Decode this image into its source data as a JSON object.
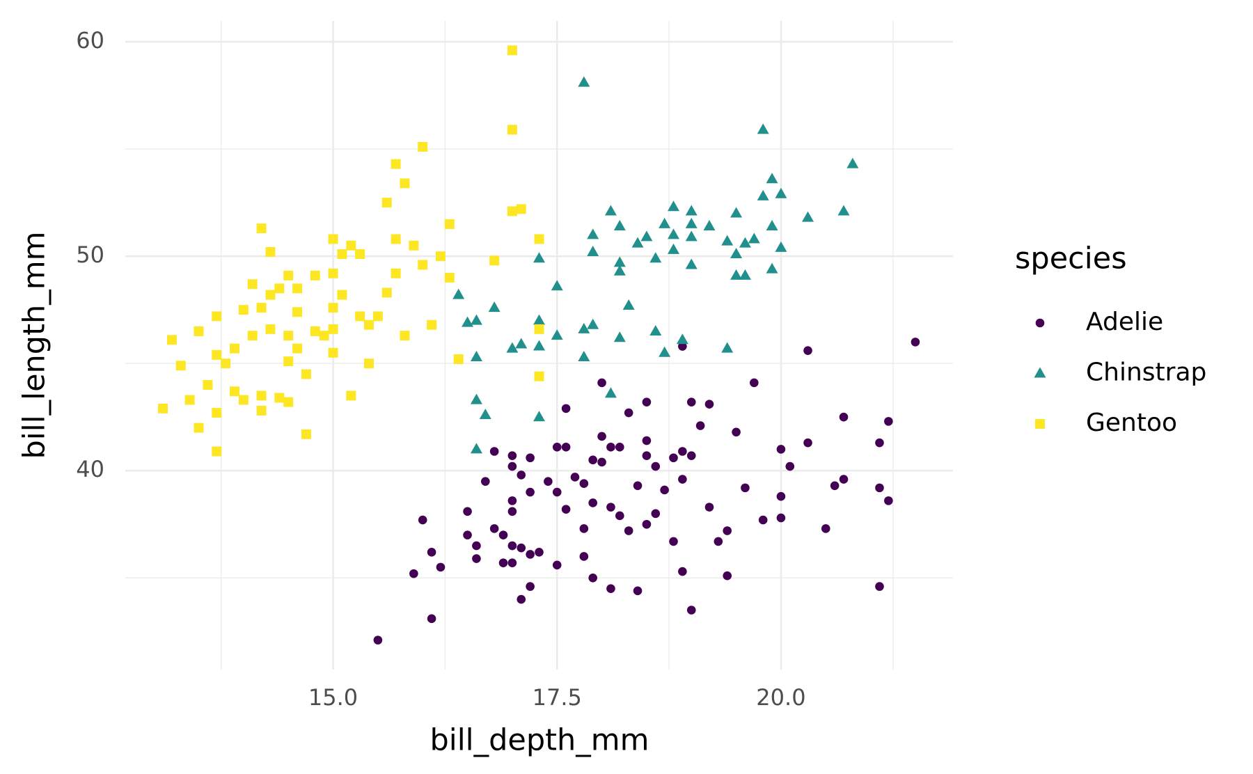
{
  "chart_data": {
    "type": "scatter",
    "xlabel": "bill_depth_mm",
    "ylabel": "bill_length_mm",
    "legend_title": "species",
    "legend": "right",
    "xlim": [
      12.68,
      21.92
    ],
    "ylim": [
      30.725,
      60.975
    ],
    "xticks": [
      {
        "value": 15,
        "label": "15.0"
      },
      {
        "value": 17.5,
        "label": "17.5"
      },
      {
        "value": 20,
        "label": "20.0"
      }
    ],
    "yticks": [
      40,
      50,
      60
    ],
    "x_minor_ticks": [
      13.75,
      16.25,
      18.75,
      21.25
    ],
    "y_minor_ticks": [
      35,
      45,
      55
    ],
    "grid": true,
    "series": [
      {
        "name": "Adelie",
        "color": "#440154",
        "marker": "circle",
        "x": [
          15.5,
          15.9,
          16.0,
          16.1,
          16.1,
          16.2,
          16.5,
          16.5,
          16.6,
          16.6,
          16.7,
          16.8,
          16.8,
          16.9,
          16.9,
          17.0,
          17.0,
          17.0,
          17.0,
          17.0,
          17.0,
          17.1,
          17.1,
          17.1,
          17.2,
          17.2,
          17.2,
          17.2,
          17.3,
          17.4,
          17.5,
          17.5,
          17.5,
          17.6,
          17.6,
          17.6,
          17.7,
          17.8,
          17.8,
          17.8,
          17.9,
          17.9,
          17.9,
          18.0,
          18.0,
          18.0,
          18.1,
          18.1,
          18.1,
          18.2,
          18.2,
          18.3,
          18.3,
          18.4,
          18.4,
          18.5,
          18.5,
          18.5,
          18.5,
          18.6,
          18.6,
          18.7,
          18.8,
          18.8,
          18.9,
          18.9,
          18.9,
          18.9,
          19.0,
          19.0,
          19.0,
          19.1,
          19.2,
          19.2,
          19.3,
          19.4,
          19.4,
          19.5,
          19.6,
          19.7,
          19.8,
          20.0,
          20.0,
          20.0,
          20.1,
          20.3,
          20.3,
          20.5,
          20.6,
          20.7,
          20.7,
          21.1,
          21.1,
          21.1,
          21.2,
          21.2,
          21.5
        ],
        "y": [
          32.1,
          35.2,
          37.7,
          33.1,
          36.2,
          35.5,
          38.1,
          37.0,
          35.9,
          36.5,
          39.5,
          40.9,
          37.3,
          37.0,
          35.7,
          40.7,
          40.2,
          38.6,
          38.1,
          36.5,
          35.7,
          39.8,
          36.4,
          34.0,
          40.6,
          39.0,
          36.1,
          34.6,
          36.2,
          39.5,
          41.1,
          39.0,
          35.6,
          42.9,
          41.1,
          38.2,
          39.7,
          39.4,
          37.3,
          36.0,
          40.5,
          38.5,
          35.0,
          44.1,
          41.6,
          40.4,
          41.1,
          38.3,
          34.5,
          41.1,
          37.9,
          42.7,
          37.2,
          39.3,
          34.4,
          43.2,
          41.4,
          40.7,
          37.5,
          40.2,
          38.0,
          39.1,
          40.6,
          36.7,
          45.8,
          40.9,
          39.6,
          35.3,
          43.2,
          40.7,
          33.5,
          42.1,
          43.1,
          38.3,
          36.7,
          37.2,
          35.1,
          41.8,
          39.2,
          44.1,
          37.7,
          41.0,
          38.8,
          37.8,
          40.2,
          45.6,
          41.3,
          37.3,
          39.3,
          42.5,
          39.6,
          41.3,
          39.2,
          34.6,
          42.3,
          38.6,
          46.0
        ]
      },
      {
        "name": "Chinstrap",
        "color": "#21908C",
        "marker": "triangle",
        "x": [
          16.4,
          16.5,
          16.6,
          16.6,
          16.6,
          16.6,
          16.7,
          16.8,
          17.0,
          17.1,
          17.3,
          17.3,
          17.3,
          17.3,
          17.5,
          17.5,
          17.8,
          17.8,
          17.8,
          17.9,
          17.9,
          17.9,
          18.1,
          18.1,
          18.2,
          18.2,
          18.2,
          18.2,
          18.3,
          18.4,
          18.5,
          18.6,
          18.6,
          18.7,
          18.7,
          18.8,
          18.8,
          18.8,
          18.9,
          19.0,
          19.0,
          19.0,
          19.0,
          19.2,
          19.4,
          19.4,
          19.5,
          19.5,
          19.5,
          19.6,
          19.6,
          19.7,
          19.8,
          19.8,
          19.9,
          19.9,
          19.9,
          20.0,
          20.0,
          20.3,
          20.7,
          20.8
        ],
        "y": [
          48.2,
          46.9,
          47.0,
          45.3,
          43.3,
          41.0,
          42.6,
          47.6,
          45.7,
          45.9,
          49.9,
          47.0,
          45.8,
          42.5,
          46.3,
          48.6,
          58.1,
          46.6,
          45.3,
          46.8,
          51.0,
          50.2,
          43.6,
          52.1,
          51.4,
          49.7,
          49.3,
          46.2,
          47.7,
          50.6,
          50.9,
          46.5,
          49.9,
          51.5,
          45.5,
          52.3,
          51.0,
          50.3,
          46.1,
          52.1,
          51.5,
          50.9,
          49.6,
          51.4,
          45.7,
          50.7,
          52.0,
          50.1,
          49.1,
          49.1,
          50.6,
          50.8,
          55.9,
          52.8,
          53.6,
          51.4,
          49.4,
          52.9,
          50.4,
          51.8,
          52.1,
          54.3
        ]
      },
      {
        "name": "Gentoo",
        "color": "#FDE725",
        "marker": "square",
        "x": [
          13.1,
          13.2,
          13.3,
          13.4,
          13.5,
          13.5,
          13.6,
          13.7,
          13.7,
          13.7,
          13.7,
          13.8,
          13.9,
          13.9,
          14.0,
          14.0,
          14.1,
          14.1,
          14.2,
          14.2,
          14.2,
          14.2,
          14.3,
          14.3,
          14.3,
          14.4,
          14.4,
          14.5,
          14.5,
          14.5,
          14.5,
          14.6,
          14.6,
          14.6,
          14.7,
          14.7,
          14.8,
          14.8,
          14.9,
          15.0,
          15.0,
          15.0,
          15.0,
          15.0,
          15.1,
          15.1,
          15.2,
          15.2,
          15.3,
          15.3,
          15.4,
          15.4,
          15.5,
          15.6,
          15.6,
          15.7,
          15.7,
          15.7,
          15.8,
          15.8,
          15.9,
          16.0,
          16.0,
          16.1,
          16.2,
          16.3,
          16.3,
          16.4,
          16.8,
          17.0,
          17.0,
          17.0,
          17.1,
          17.3,
          17.3,
          17.3
        ],
        "y": [
          42.9,
          46.1,
          44.9,
          43.3,
          42.0,
          46.5,
          44.0,
          47.2,
          40.9,
          42.7,
          45.4,
          45.0,
          45.7,
          43.7,
          43.3,
          47.5,
          48.7,
          46.3,
          42.8,
          43.5,
          51.3,
          47.6,
          50.2,
          48.2,
          46.6,
          48.5,
          43.4,
          43.2,
          49.1,
          45.1,
          46.3,
          47.4,
          45.7,
          48.5,
          41.7,
          44.5,
          46.5,
          49.1,
          46.3,
          50.8,
          49.2,
          47.6,
          46.6,
          45.5,
          48.2,
          50.1,
          43.5,
          50.5,
          50.1,
          47.2,
          46.8,
          45.0,
          47.2,
          48.3,
          52.5,
          54.3,
          50.8,
          49.2,
          53.4,
          46.3,
          50.5,
          55.1,
          49.6,
          46.8,
          50.0,
          51.5,
          49.0,
          45.2,
          49.8,
          59.6,
          55.9,
          52.1,
          52.2,
          50.8,
          44.4,
          46.6
        ]
      }
    ]
  }
}
